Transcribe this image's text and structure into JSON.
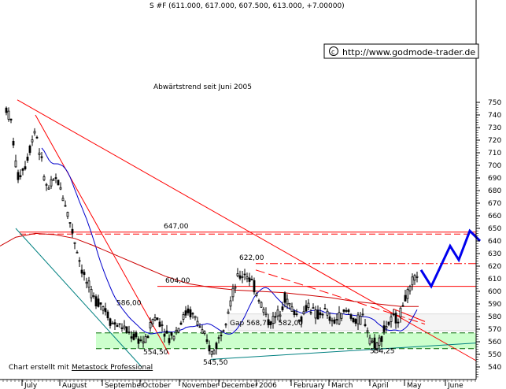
{
  "chart_data": {
    "type": "candlestick",
    "title": "S #F (611.000, 617.000, 607.500, 613.000, +7.00000)",
    "annotation": "Abwärtstrend seit Juni 2005",
    "copyright_text": "http://www.godmode-trader.de",
    "footer_prefix": "Chart erstellt mit",
    "footer_link": "Metastock Professional",
    "gap_label": "Gap 568,75 - 582,00",
    "ylim": [
      540,
      756
    ],
    "y_ticks": [
      540,
      550,
      560,
      570,
      580,
      590,
      600,
      610,
      620,
      630,
      640,
      650,
      660,
      670,
      680,
      690,
      700,
      710,
      720,
      730,
      740,
      750
    ],
    "x_months": [
      "July",
      "August",
      "September",
      "October",
      "November",
      "December",
      "2006",
      "February",
      "March",
      "April",
      "May",
      "June"
    ],
    "price_levels": [
      {
        "label": "647,00",
        "value": 647
      },
      {
        "label": "622,00",
        "value": 622
      },
      {
        "label": "604,00",
        "value": 604
      },
      {
        "label": "586,00",
        "value": 586
      },
      {
        "label": "554,50",
        "value": 554.5
      },
      {
        "label": "545,50",
        "value": 545.5
      },
      {
        "label": "554,25",
        "value": 554.25
      }
    ],
    "support_zone": [
      554.5,
      567
    ],
    "gap_zone": [
      568.75,
      582
    ],
    "colors": {
      "candle": "#000000",
      "resistance": "#ff0000",
      "ma_slow": "#cc0000",
      "ma_fast": "#0000cc",
      "zone": "#ccffcc",
      "projection": "#0000ee",
      "channel": "#008080"
    }
  }
}
